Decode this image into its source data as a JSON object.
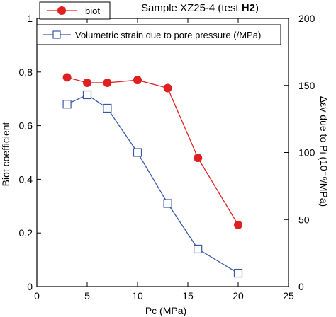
{
  "chart_data": {
    "type": "line",
    "title": "Sample XZ25-4 (test ",
    "title_bold": "H2",
    "title_close": ")",
    "xlabel": "Pc (MPa)",
    "ylabel_left": "Biot coefficient",
    "ylabel_right": "Δεv due to Pi (10⁻⁶/MPa)",
    "xlim": [
      0,
      25
    ],
    "ylim_left": [
      0,
      1
    ],
    "ylim_right": [
      0,
      200
    ],
    "x_ticks": [
      "0",
      "5",
      "10",
      "15",
      "20",
      "25"
    ],
    "y_left_ticks": [
      "0",
      "0,2",
      "0,4",
      "0,6",
      "0,8",
      "1"
    ],
    "y_right_ticks": [
      "0",
      "50",
      "100",
      "150",
      "200"
    ],
    "series": [
      {
        "name": "biot",
        "axis": "left",
        "color": "#e02020",
        "marker": "filled-circle",
        "x": [
          3,
          5,
          7,
          10,
          13,
          16,
          20
        ],
        "y": [
          0.78,
          0.76,
          0.76,
          0.77,
          0.74,
          0.48,
          0.23
        ]
      },
      {
        "name": "Volumetric strain due to pore pressure (/MPa)",
        "axis": "right",
        "color": "#3a5aa8",
        "marker": "open-square",
        "x": [
          3,
          5,
          7,
          10,
          13,
          16,
          20
        ],
        "y": [
          136,
          143,
          133,
          100,
          62,
          28,
          10
        ]
      }
    ],
    "grid": false,
    "legend_placement": "top-left"
  }
}
